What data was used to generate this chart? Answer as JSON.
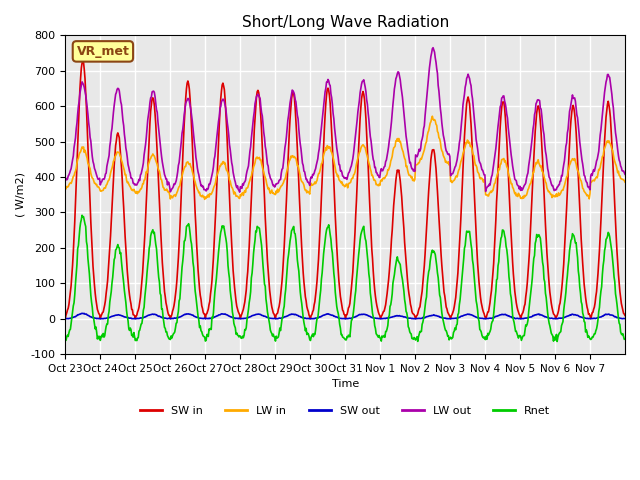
{
  "title": "Short/Long Wave Radiation",
  "ylabel": "( W/m2)",
  "xlabel": "Time",
  "ylim": [
    -100,
    800
  ],
  "station_label": "VR_met",
  "colors": {
    "SW_in": "#dd0000",
    "LW_in": "#ffaa00",
    "SW_out": "#0000cc",
    "LW_out": "#aa00aa",
    "Rnet": "#00cc00"
  },
  "legend_labels": [
    "SW in",
    "LW in",
    "SW out",
    "LW out",
    "Rnet"
  ],
  "xtick_labels": [
    "Oct 23",
    "Oct 24",
    "Oct 25",
    "Oct 26",
    "Oct 27",
    "Oct 28",
    "Oct 29",
    "Oct 30",
    "Oct 31",
    "Nov 1",
    "Nov 2",
    "Nov 3",
    "Nov 4",
    "Nov 5",
    "Nov 6",
    "Nov 7"
  ],
  "ytick_vals": [
    -100,
    0,
    100,
    200,
    300,
    400,
    500,
    600,
    700,
    800
  ],
  "bg_color": "#e8e8e8",
  "fig_color": "#ffffff",
  "linewidth": 1.2,
  "sw_peaks": [
    730,
    525,
    625,
    670,
    665,
    645,
    640,
    650,
    640,
    420,
    480,
    625,
    615,
    600,
    600,
    610
  ],
  "lw_in_base": [
    370,
    360,
    355,
    340,
    340,
    350,
    355,
    375,
    375,
    390,
    435,
    385,
    345,
    340,
    345,
    385
  ]
}
